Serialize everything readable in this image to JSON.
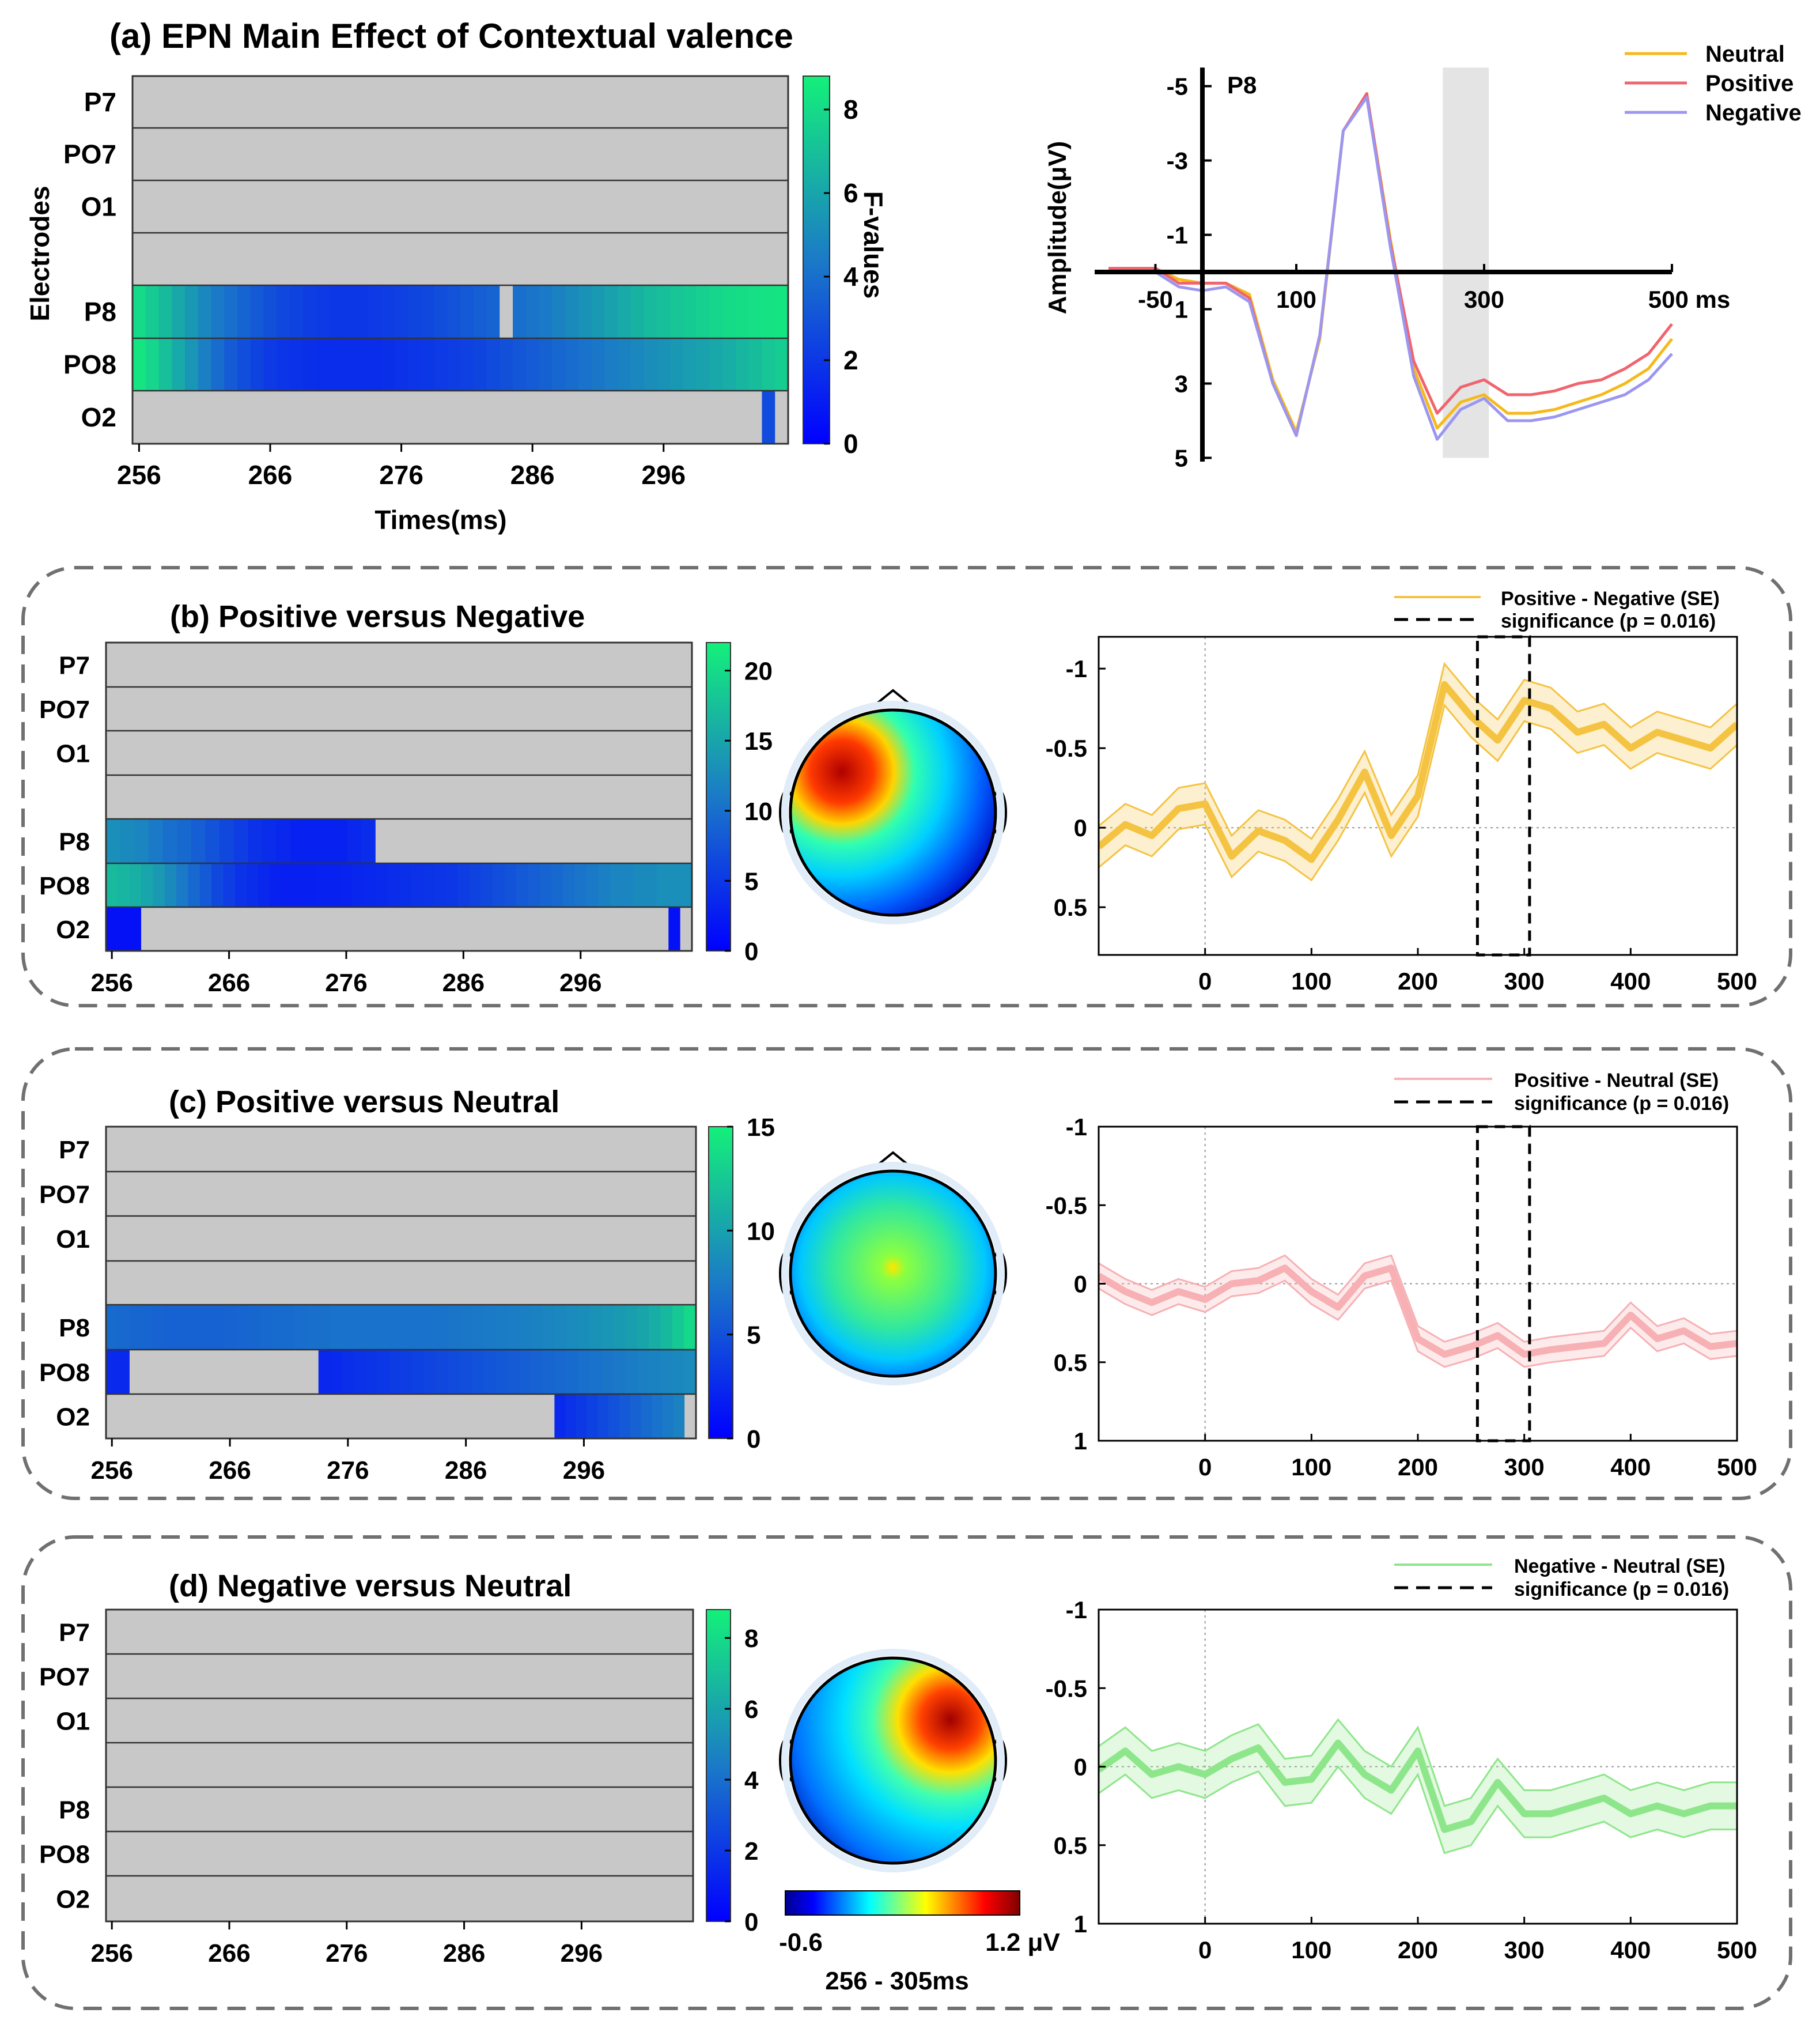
{
  "figure": {
    "hm_times": [
      "256",
      "266",
      "276",
      "286",
      "296"
    ],
    "colorbar_label": "F-values",
    "panel_a": {
      "title": "(a) EPN Main Effect of Contextual valence",
      "ylabel": "Electrodes",
      "xlabel": "Times(ms)",
      "cb_ticks": [
        "0",
        "2",
        "4",
        "6",
        "8"
      ],
      "erp_title": "P8",
      "erp_ylabel": "Amplitude(μV)",
      "erp_xticks": [
        "-50",
        "100",
        "300",
        "500 ms"
      ],
      "erp_yticks": [
        "-5",
        "-3",
        "-1",
        "1",
        "3",
        "5"
      ],
      "legend": [
        "Neutral",
        "Positive",
        "Negative"
      ]
    },
    "panel_b": {
      "title": "(b) Positive versus Negative",
      "cb_ticks": [
        "0",
        "5",
        "10",
        "15",
        "20"
      ],
      "legend": [
        "Positive - Negative (SE)",
        "significance (p = 0.016)"
      ]
    },
    "panel_c": {
      "title": "(c) Positive versus Neutral",
      "cb_ticks": [
        "0",
        "5",
        "10",
        "15"
      ],
      "legend": [
        "Positive - Neutral (SE)",
        "significance (p = 0.016)"
      ]
    },
    "panel_d": {
      "title": "(d) Negative versus Neutral",
      "cb_ticks": [
        "0",
        "2",
        "4",
        "6",
        "8"
      ],
      "legend": [
        "Negative - Neutral (SE)",
        "significance (p = 0.016)"
      ]
    },
    "topo_colorbar": {
      "min_label": "-0.6",
      "max_label": "1.2 μV",
      "window_label": "256 - 305ms"
    },
    "diff_xticks": [
      "0",
      "100",
      "200",
      "300",
      "400",
      "500"
    ],
    "diff_yticks_b": [
      "-1",
      "-0.5",
      "0",
      "0.5"
    ],
    "diff_yticks_cd": [
      "-1",
      "-0.5",
      "0",
      "0.5",
      "1"
    ]
  },
  "chart_data": [
    {
      "type": "heatmap",
      "id": "a",
      "title": "(a) EPN Main Effect of Contextual valence",
      "xlabel": "Times(ms)",
      "ylabel": "Electrodes",
      "x_range": [
        256,
        305
      ],
      "x_ticks": [
        256,
        266,
        276,
        286,
        296
      ],
      "rows": [
        "P7",
        "PO7",
        "O1",
        "",
        "P8",
        "PO8",
        "O2"
      ],
      "value_range": [
        0,
        8.8
      ],
      "colorbar_label": "F-values",
      "values": {
        "P8": [
          8,
          7.4,
          6.8,
          6.1,
          5.5,
          4.9,
          4.4,
          4,
          3.6,
          3.2,
          2.9,
          2.6,
          2.4,
          2.2,
          2.1,
          2,
          2,
          2,
          2.1,
          2.2,
          2.3,
          2.5,
          2.6,
          2.8,
          3,
          3.2,
          3.4,
          3.6,
          3.8,
          4,
          4.2,
          4.4,
          4.7,
          5,
          5.3,
          5.6,
          5.9,
          6.2,
          6.5,
          6.8,
          7,
          7.2,
          7.4,
          7.6,
          7.8,
          8,
          8.1,
          8.2,
          8.3,
          8.4
        ],
        "PO8": [
          8.4,
          7.8,
          7,
          6.2,
          5.4,
          4.6,
          3.9,
          3.3,
          2.8,
          2.4,
          2.1,
          1.9,
          1.8,
          1.7,
          1.6,
          1.6,
          1.6,
          1.6,
          1.6,
          1.7,
          1.8,
          1.9,
          2,
          2.1,
          2.2,
          2.3,
          2.5,
          2.7,
          2.9,
          3.1,
          3.3,
          3.5,
          3.7,
          3.9,
          4.1,
          4.3,
          4.5,
          4.7,
          4.9,
          5.1,
          5.3,
          5.5,
          5.7,
          5.9,
          6.1,
          6.3,
          6.6,
          6.9,
          7.2,
          7.5
        ]
      },
      "single_values": [
        {
          "row": "P8",
          "t_start": 284,
          "t_end": 285,
          "value": null
        },
        {
          "row": "O2",
          "t_start": 304,
          "t_end": 305,
          "value": 2.7
        }
      ]
    },
    {
      "type": "line",
      "id": "a-erp",
      "title": "P8",
      "xlabel": "ms",
      "ylabel": "Amplitude(μV)",
      "xlim": [
        -100,
        500
      ],
      "ylim": [
        5,
        -5.5
      ],
      "y_inverted": true,
      "x_ticks": [
        -50,
        100,
        300,
        500
      ],
      "y_ticks": [
        -5,
        -3,
        -1,
        1,
        3,
        5
      ],
      "shaded_window_ms": [
        256,
        305
      ],
      "x": [
        -100,
        -75,
        -50,
        -25,
        0,
        25,
        50,
        75,
        100,
        125,
        150,
        175,
        200,
        225,
        250,
        275,
        300,
        325,
        350,
        375,
        400,
        425,
        450,
        475,
        500
      ],
      "series": [
        {
          "name": "Neutral",
          "color": "#f5b91a",
          "values": [
            0,
            0,
            -0.1,
            0.2,
            0.3,
            0.3,
            0.6,
            2.9,
            4.3,
            1.8,
            -3.8,
            -4.8,
            -0.9,
            2.6,
            4.2,
            3.5,
            3.3,
            3.8,
            3.8,
            3.7,
            3.5,
            3.3,
            3,
            2.6,
            1.8
          ]
        },
        {
          "name": "Positive",
          "color": "#f0646e",
          "values": [
            -0.1,
            -0.1,
            -0.1,
            0.3,
            0.3,
            0.3,
            0.7,
            3,
            4.4,
            1.7,
            -3.8,
            -4.8,
            -0.8,
            2.4,
            3.8,
            3.1,
            2.9,
            3.3,
            3.3,
            3.2,
            3,
            2.9,
            2.6,
            2.2,
            1.4
          ]
        },
        {
          "name": "Negative",
          "color": "#9b96f0",
          "values": [
            0,
            0,
            0,
            0.4,
            0.5,
            0.4,
            0.8,
            3,
            4.4,
            1.7,
            -3.8,
            -4.7,
            -0.7,
            2.8,
            4.5,
            3.7,
            3.4,
            4,
            4,
            3.9,
            3.7,
            3.5,
            3.3,
            2.9,
            2.2
          ]
        }
      ]
    },
    {
      "type": "heatmap",
      "id": "b",
      "title": "(b) Positive versus Negative",
      "x_range": [
        256,
        305
      ],
      "x_ticks": [
        256,
        266,
        276,
        286,
        296
      ],
      "rows": [
        "P7",
        "PO7",
        "O1",
        "",
        "P8",
        "PO8",
        "O2"
      ],
      "value_range": [
        0,
        22
      ],
      "colorbar_label": "F-values",
      "values": {
        "P8": [
          13,
          12.5,
          12,
          11,
          10,
          9.5,
          8.5,
          7.5,
          6.5,
          5.5,
          4.5,
          4,
          3.5,
          3,
          3,
          3,
          3,
          3.5,
          4
        ],
        "PO8": [
          17,
          16.5,
          16,
          15,
          14,
          12.5,
          11,
          9.5,
          8,
          6.5,
          5.5,
          4.5,
          4,
          3.5,
          3,
          2.8,
          2.8,
          2.8,
          3,
          3,
          3.2,
          3.4,
          3.6,
          3.8,
          4,
          4.2,
          4.4,
          4.6,
          4.8,
          5,
          5.5,
          6,
          6.5,
          7,
          7.5,
          8,
          8.5,
          9,
          9.5,
          10,
          10.5,
          11,
          11.5,
          12,
          12,
          12.5,
          12.5,
          13,
          13,
          13
        ]
      },
      "single_values": [
        {
          "row": "P8",
          "t_start": 279,
          "t_end": 287,
          "value": null
        },
        {
          "row": "O2",
          "t_start": 256,
          "t_end": 259,
          "value": 1.5
        },
        {
          "row": "O2",
          "t_start": 304,
          "t_end": 305,
          "value": 1.5
        }
      ]
    },
    {
      "type": "line",
      "id": "b-diff",
      "xlim": [
        -100,
        500
      ],
      "ylim": [
        0.8,
        -1.2
      ],
      "y_inverted": true,
      "x_ticks": [
        0,
        100,
        200,
        300,
        400,
        500
      ],
      "y_ticks": [
        -1,
        -0.5,
        0,
        0.5
      ],
      "significance_ms": [
        256,
        305
      ],
      "x": [
        -100,
        -75,
        -50,
        -25,
        0,
        25,
        50,
        75,
        100,
        125,
        150,
        175,
        200,
        225,
        250,
        275,
        300,
        325,
        350,
        375,
        400,
        425,
        450,
        475,
        500
      ],
      "series": [
        {
          "name": "Positive - Negative (SE)",
          "color": "#f5c342",
          "values": [
            0.12,
            -0.02,
            0.05,
            -0.12,
            -0.15,
            0.18,
            0.02,
            0.08,
            0.2,
            -0.05,
            -0.35,
            0.05,
            -0.2,
            -0.9,
            -0.7,
            -0.55,
            -0.8,
            -0.75,
            -0.6,
            -0.65,
            -0.5,
            -0.6,
            -0.55,
            -0.5,
            -0.65
          ],
          "se": 0.13
        }
      ]
    },
    {
      "type": "heatmap",
      "id": "c",
      "title": "(c) Positive versus Neutral",
      "x_range": [
        256,
        305
      ],
      "x_ticks": [
        256,
        266,
        276,
        286,
        296
      ],
      "rows": [
        "P7",
        "PO7",
        "O1",
        "",
        "P8",
        "PO8",
        "O2"
      ],
      "value_range": [
        0,
        15
      ],
      "colorbar_label": "F-values",
      "values": {
        "P8": [
          6.5,
          6.4,
          6.3,
          6.2,
          6.1,
          6,
          6,
          6,
          6,
          6,
          6.1,
          6.2,
          6.3,
          6.4,
          6.5,
          6.6,
          6.7,
          6.8,
          6.9,
          7,
          7,
          7,
          7,
          7,
          7,
          7,
          7,
          7,
          7.1,
          7.2,
          7.3,
          7.4,
          7.5,
          7.6,
          7.7,
          7.8,
          8,
          8.2,
          8.4,
          8.6,
          8.8,
          9,
          9.2,
          9.5,
          9.8,
          10.2,
          10.8,
          11.5,
          12.5,
          13.5
        ],
        "PO8": [
          2.5,
          2.5,
          2.4,
          2.6,
          2.8,
          3,
          3.2,
          3.4,
          3.6,
          3.8,
          4,
          4.2,
          4.4,
          4.6,
          4.8,
          5,
          5.2,
          5.4,
          5.6,
          5.8,
          6,
          6.2,
          6.4,
          6.6,
          6.8,
          7,
          7.2,
          7.4,
          7.6,
          7.8,
          8,
          8.2,
          8.4,
          8.6
        ],
        "O2": [
          2.5,
          3,
          3.5,
          4,
          4.5,
          5,
          5.5,
          6,
          6.5,
          7,
          7.5,
          8
        ]
      },
      "single_values": [
        {
          "row": "PO8",
          "t_start": 258,
          "t_end": 274,
          "value": null
        },
        {
          "row": "O2",
          "t_start": 256,
          "t_end": 294,
          "value": null
        }
      ]
    },
    {
      "type": "line",
      "id": "c-diff",
      "xlim": [
        -100,
        500
      ],
      "ylim": [
        1,
        -1
      ],
      "y_inverted": true,
      "x_ticks": [
        0,
        100,
        200,
        300,
        400,
        500
      ],
      "y_ticks": [
        -1,
        -0.5,
        0,
        0.5,
        1
      ],
      "significance_ms": [
        256,
        305
      ],
      "x": [
        -100,
        -75,
        -50,
        -25,
        0,
        25,
        50,
        75,
        100,
        125,
        150,
        175,
        200,
        225,
        250,
        275,
        300,
        325,
        350,
        375,
        400,
        425,
        450,
        475,
        500
      ],
      "series": [
        {
          "name": "Positive - Neutral (SE)",
          "color": "#f7b0b4",
          "values": [
            -0.05,
            0.05,
            0.12,
            0.05,
            0.1,
            0,
            -0.02,
            -0.1,
            0.05,
            0.15,
            -0.05,
            -0.1,
            0.35,
            0.45,
            0.4,
            0.33,
            0.45,
            0.42,
            0.4,
            0.38,
            0.2,
            0.35,
            0.3,
            0.4,
            0.38
          ],
          "se": 0.08
        }
      ]
    },
    {
      "type": "heatmap",
      "id": "d",
      "title": "(d) Negative versus Neutral",
      "x_range": [
        256,
        305
      ],
      "x_ticks": [
        256,
        266,
        276,
        286,
        296
      ],
      "rows": [
        "P7",
        "PO7",
        "O1",
        "",
        "P8",
        "PO8",
        "O2"
      ],
      "value_range": [
        0,
        8.8
      ],
      "colorbar_label": "F-values",
      "values": {}
    },
    {
      "type": "line",
      "id": "d-diff",
      "xlim": [
        -100,
        500
      ],
      "ylim": [
        1,
        -1
      ],
      "y_inverted": true,
      "x_ticks": [
        0,
        100,
        200,
        300,
        400,
        500
      ],
      "y_ticks": [
        -1,
        -0.5,
        0,
        0.5,
        1
      ],
      "x": [
        -100,
        -75,
        -50,
        -25,
        0,
        25,
        50,
        75,
        100,
        125,
        150,
        175,
        200,
        225,
        250,
        275,
        300,
        325,
        350,
        375,
        400,
        425,
        450,
        475,
        500
      ],
      "series": [
        {
          "name": "Negative - Neutral (SE)",
          "color": "#8ee68a",
          "values": [
            0.02,
            -0.1,
            0.05,
            0,
            0.05,
            -0.05,
            -0.12,
            0.1,
            0.08,
            -0.15,
            0.05,
            0.15,
            -0.1,
            0.4,
            0.35,
            0.1,
            0.3,
            0.3,
            0.25,
            0.2,
            0.3,
            0.25,
            0.3,
            0.25,
            0.25
          ],
          "se": 0.15
        }
      ]
    }
  ]
}
